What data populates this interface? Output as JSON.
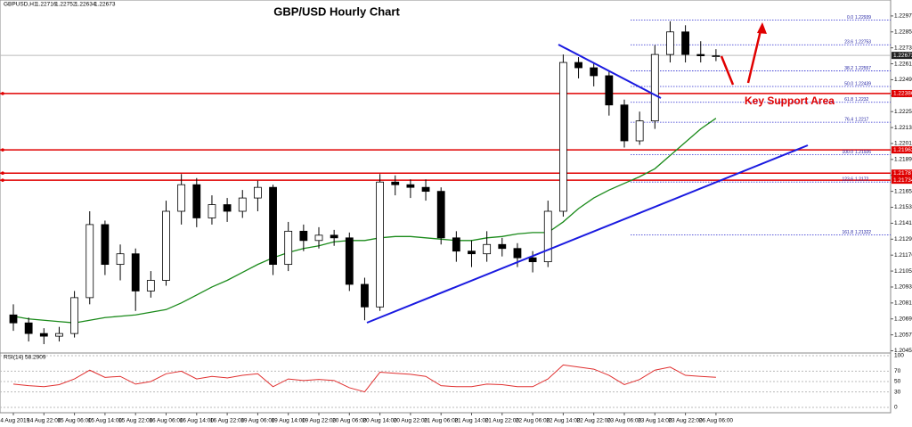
{
  "chart_data": {
    "type": "candlestick",
    "title": "GBP/USD Hourly Chart",
    "header": {
      "symbol": "GBPUSD,H1",
      "ohlc": [
        1.22716,
        1.22752,
        1.22634,
        1.22673
      ]
    },
    "x": [
      "14 Aug 2019",
      null,
      "14 Aug 22:00",
      null,
      "15 Aug 06:00",
      null,
      "15 Aug 14:00",
      null,
      "15 Aug 22:00",
      null,
      "16 Aug 06:00",
      null,
      "16 Aug 14:00",
      null,
      "16 Aug 22:00",
      null,
      "19 Aug 06:00",
      null,
      "19 Aug 14:00",
      null,
      "19 Aug 22:00",
      null,
      "20 Aug 06:00",
      null,
      "20 Aug 14:00",
      null,
      "20 Aug 22:00",
      null,
      "21 Aug 06:00",
      null,
      "21 Aug 14:00",
      null,
      "21 Aug 22:00",
      null,
      "22 Aug 06:00",
      null,
      "22 Aug 14:00",
      null,
      "22 Aug 22:00",
      null,
      "23 Aug 06:00",
      null,
      "23 Aug 14:00",
      null,
      "23 Aug 22:00",
      null,
      "26 Aug 06:00"
    ],
    "open": [
      1.2072,
      1.2066,
      1.2058,
      1.2056,
      1.2058,
      1.2085,
      1.214,
      1.211,
      1.2118,
      1.209,
      1.2098,
      1.215,
      1.217,
      1.2145,
      1.2155,
      1.215,
      1.216,
      1.2168,
      1.211,
      1.2135,
      1.2128,
      1.2132,
      1.213,
      1.2095,
      1.2078,
      1.2172,
      1.217,
      1.2168,
      1.2165,
      1.213,
      1.212,
      1.2118,
      1.2125,
      1.2122,
      1.2115,
      1.2112,
      1.215,
      1.2262,
      1.2258,
      1.2252,
      1.223,
      1.2203,
      1.2218,
      1.2268,
      1.2285,
      1.2268,
      1.2267
    ],
    "high": [
      1.208,
      1.207,
      1.2062,
      1.2063,
      1.209,
      1.215,
      1.2143,
      1.2125,
      1.2122,
      1.2105,
      1.2158,
      1.2178,
      1.2175,
      1.2162,
      1.216,
      1.2166,
      1.2173,
      1.217,
      1.2142,
      1.214,
      1.2138,
      1.2136,
      1.2134,
      1.21,
      1.2178,
      1.2177,
      1.2174,
      1.2174,
      1.2168,
      1.2135,
      1.2128,
      1.2135,
      1.213,
      1.2126,
      1.212,
      1.2158,
      1.2268,
      1.2266,
      1.2262,
      1.2256,
      1.2234,
      1.2225,
      1.2275,
      1.2293,
      1.229,
      1.2278,
      1.2272
    ],
    "low": [
      1.206,
      1.2052,
      1.205,
      1.2052,
      1.2055,
      1.208,
      1.2102,
      1.2098,
      1.2075,
      1.2085,
      1.2094,
      1.214,
      1.2138,
      1.214,
      1.2142,
      1.2145,
      1.215,
      1.2102,
      1.2105,
      1.212,
      1.2122,
      1.2124,
      1.209,
      1.2068,
      1.2075,
      1.2162,
      1.216,
      1.2158,
      1.2125,
      1.2112,
      1.2108,
      1.2112,
      1.2116,
      1.2108,
      1.2104,
      1.2108,
      1.2146,
      1.225,
      1.2244,
      1.2222,
      1.2198,
      1.22,
      1.2212,
      1.2262,
      1.2262,
      1.2262,
      1.2263
    ],
    "close": [
      1.2066,
      1.2058,
      1.2056,
      1.2058,
      1.2085,
      1.214,
      1.211,
      1.2118,
      1.209,
      1.2098,
      1.215,
      1.217,
      1.2145,
      1.2155,
      1.215,
      1.216,
      1.2168,
      1.211,
      1.2135,
      1.2128,
      1.2132,
      1.213,
      1.2095,
      1.2078,
      1.2172,
      1.217,
      1.2168,
      1.2165,
      1.213,
      1.212,
      1.2118,
      1.2125,
      1.2122,
      1.2115,
      1.2112,
      1.215,
      1.2262,
      1.2258,
      1.2252,
      1.223,
      1.2203,
      1.2218,
      1.2268,
      1.2285,
      1.2268,
      1.2267,
      1.2267
    ],
    "moving_average": {
      "color": "#1a8a1a",
      "values": [
        1.2071,
        1.2069,
        1.2068,
        1.2067,
        1.2066,
        1.2068,
        1.207,
        1.2071,
        1.2072,
        1.2074,
        1.2076,
        1.2081,
        1.2087,
        1.2093,
        1.2098,
        1.2104,
        1.211,
        1.2115,
        1.2119,
        1.2122,
        1.2124,
        1.2127,
        1.2128,
        1.2128,
        1.213,
        1.2131,
        1.2131,
        1.213,
        1.2129,
        1.2128,
        1.2128,
        1.213,
        1.2131,
        1.2133,
        1.2134,
        1.2134,
        1.2142,
        1.2152,
        1.216,
        1.2166,
        1.2171,
        1.2176,
        1.2182,
        1.2192,
        1.2202,
        1.2212,
        1.222
      ]
    },
    "ylim": [
      1.2044,
      1.2309
    ],
    "yticks": [
      {
        "value": 1.2297,
        "label": "1.22970"
      },
      {
        "value": 1.2285,
        "label": "1.22850"
      },
      {
        "value": 1.2273,
        "label": "1.22730"
      },
      {
        "value": 1.2261,
        "label": "1.22610"
      },
      {
        "value": 1.2249,
        "label": "1.22490"
      },
      {
        "value": 1.2237,
        "label": "1.22370"
      },
      {
        "value": 1.2225,
        "label": "1.22250"
      },
      {
        "value": 1.2213,
        "label": "1.22130"
      },
      {
        "value": 1.2201,
        "label": "1.22010"
      },
      {
        "value": 1.2189,
        "label": "1.21890"
      },
      {
        "value": 1.2177,
        "label": "1.21770"
      },
      {
        "value": 1.2165,
        "label": "1.21650"
      },
      {
        "value": 1.2153,
        "label": "1.21530"
      },
      {
        "value": 1.2141,
        "label": "1.21410"
      },
      {
        "value": 1.2129,
        "label": "1.21290"
      },
      {
        "value": 1.2117,
        "label": "1.21170"
      },
      {
        "value": 1.2105,
        "label": "1.21050"
      },
      {
        "value": 1.2093,
        "label": "1.20930"
      },
      {
        "value": 1.2081,
        "label": "1.20810"
      },
      {
        "value": 1.2069,
        "label": "1.20690"
      },
      {
        "value": 1.2057,
        "label": "1.20570"
      },
      {
        "value": 1.2045,
        "label": "1.20450"
      }
    ],
    "current_price": 1.22673,
    "levels": [
      1.22386,
      1.21962,
      1.21787,
      1.21734
    ],
    "level_color": "#e00000",
    "fib_levels": [
      {
        "level": "0.0",
        "price": 1.22939
      },
      {
        "level": "23.6",
        "price": 1.22753
      },
      {
        "level": "38.2",
        "price": 1.22557
      },
      {
        "level": "50.0",
        "price": 1.22439
      },
      {
        "level": "61.8",
        "price": 1.2232
      },
      {
        "level": "76.4",
        "price": 1.2217
      },
      {
        "level": "100.0",
        "price": 1.21926
      },
      {
        "level": "123.6",
        "price": 1.2172
      },
      {
        "level": "161.8",
        "price": 1.21322
      }
    ],
    "annotation": "Key Support Area",
    "rsi": {
      "name": "RSI(14)",
      "last": 58.2909,
      "color": "#e03030",
      "ylim": [
        0,
        100
      ],
      "yticks": [
        100,
        70,
        50,
        30,
        0
      ],
      "values": [
        45,
        42,
        40,
        44,
        55,
        72,
        58,
        60,
        45,
        50,
        65,
        70,
        55,
        60,
        57,
        62,
        65,
        40,
        55,
        52,
        54,
        52,
        38,
        30,
        68,
        66,
        64,
        60,
        42,
        40,
        40,
        45,
        44,
        40,
        40,
        55,
        82,
        78,
        74,
        62,
        44,
        54,
        72,
        78,
        62,
        60,
        58.2909
      ]
    }
  }
}
